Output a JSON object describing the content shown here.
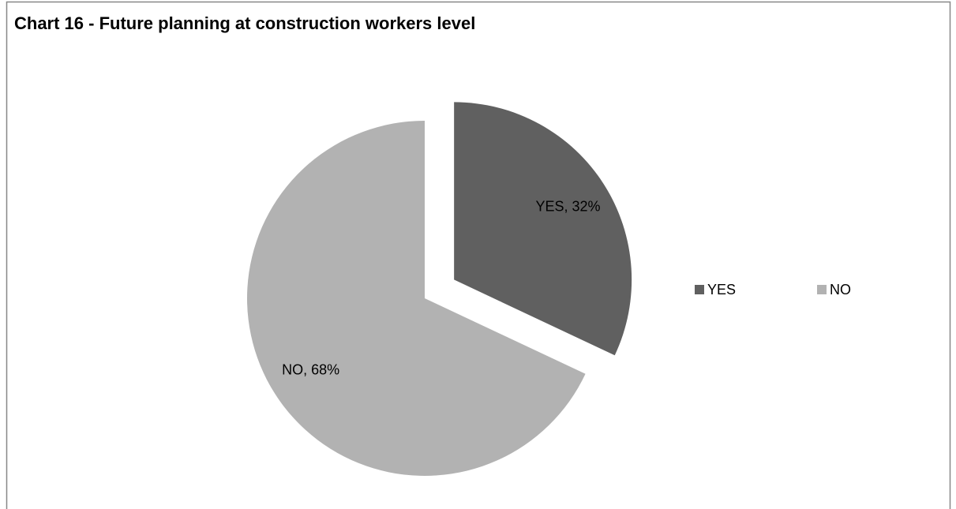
{
  "chart_data": {
    "type": "pie",
    "title": "Chart 16 - Future planning at construction workers level",
    "categories": [
      "YES",
      "NO"
    ],
    "values": [
      32,
      68
    ],
    "value_labels": [
      "YES, 32%",
      "NO, 68%"
    ],
    "colors": [
      "#606060",
      "#b2b2b2"
    ],
    "legend": "right"
  }
}
